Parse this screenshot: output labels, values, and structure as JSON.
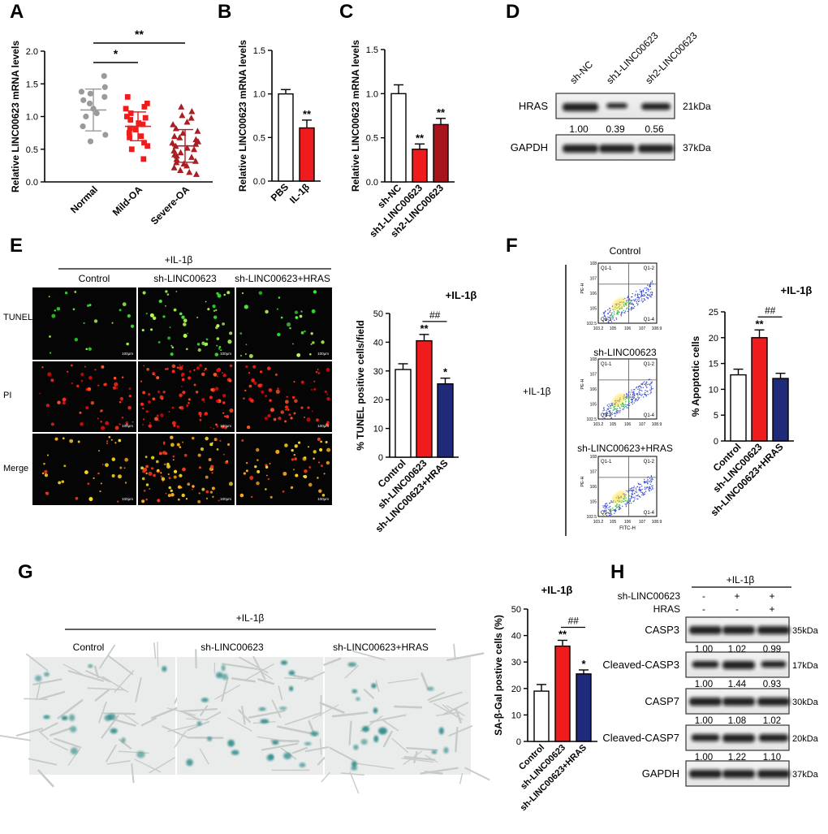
{
  "panels": {
    "A": {
      "label": "A"
    },
    "B": {
      "label": "B"
    },
    "C": {
      "label": "C"
    },
    "D": {
      "label": "D"
    },
    "E": {
      "label": "E"
    },
    "F": {
      "label": "F"
    },
    "G": {
      "label": "G"
    },
    "H": {
      "label": "H"
    }
  },
  "common": {
    "il1b": "+IL-1β"
  },
  "colors": {
    "white_bar": "#ffffff",
    "red": "#ee1c1c",
    "darkred": "#a8141c",
    "navy": "#1f2a7a",
    "grey": "#9a9a9a",
    "tri": "#a81e22"
  },
  "chart_data": [
    {
      "panel": "A",
      "type": "scatter",
      "ylabel": "Relative LINC00623 mRNA levels",
      "ylim": [
        0,
        2.0
      ],
      "yticks": [
        "0.0",
        "0.5",
        "1.0",
        "1.5",
        "2.0"
      ],
      "categories": [
        "Normal",
        "Mild-OA",
        "Severe-OA"
      ],
      "series": [
        {
          "values": [
            1.62,
            1.45,
            1.38,
            1.35,
            1.3,
            1.25,
            1.2,
            1.12,
            1.05,
            1.0,
            0.85,
            0.72,
            0.62
          ],
          "mean": 1.1,
          "sd": 0.32
        },
        {
          "values": [
            1.3,
            1.2,
            1.15,
            1.12,
            1.05,
            1.0,
            0.98,
            0.95,
            0.9,
            0.88,
            0.82,
            0.8,
            0.75,
            0.7,
            0.68,
            0.6,
            0.55,
            0.5,
            0.35
          ],
          "mean": 0.85,
          "sd": 0.22
        },
        {
          "values": [
            1.15,
            1.08,
            1.02,
            0.98,
            0.92,
            0.88,
            0.82,
            0.78,
            0.75,
            0.7,
            0.68,
            0.65,
            0.62,
            0.6,
            0.58,
            0.55,
            0.52,
            0.5,
            0.48,
            0.45,
            0.42,
            0.4,
            0.38,
            0.35,
            0.32,
            0.3,
            0.28,
            0.25,
            0.22,
            0.18,
            0.15,
            0.12
          ],
          "mean": 0.55,
          "sd": 0.25
        }
      ],
      "significance": [
        {
          "from": 0,
          "to": 1,
          "label": "*"
        },
        {
          "from": 0,
          "to": 2,
          "label": "**"
        }
      ]
    },
    {
      "panel": "B",
      "type": "bar",
      "ylabel": "Relative LINC00623 mRNA levels",
      "ylim": [
        0,
        1.5
      ],
      "yticks": [
        "0.0",
        "0.5",
        "1.0",
        "1.5"
      ],
      "categories": [
        "PBS",
        "IL-1β"
      ],
      "values": [
        1.0,
        0.61
      ],
      "errors": [
        0.05,
        0.09
      ],
      "bar_colors": [
        "white",
        "red"
      ],
      "stars": [
        "",
        "**"
      ]
    },
    {
      "panel": "C",
      "type": "bar",
      "ylabel": "Relative LINC00623 mRNA levels",
      "ylim": [
        0,
        1.5
      ],
      "yticks": [
        "0.0",
        "0.5",
        "1.0",
        "1.5"
      ],
      "categories": [
        "sh-NC",
        "sh1-LINC00623",
        "sh2-LINC00623"
      ],
      "values": [
        1.0,
        0.37,
        0.65
      ],
      "errors": [
        0.1,
        0.06,
        0.07
      ],
      "bar_colors": [
        "white",
        "red",
        "darkred"
      ],
      "stars": [
        "",
        "**",
        "**"
      ]
    },
    {
      "panel": "E",
      "type": "bar",
      "ylabel": "% TUNEL positive cells/field",
      "title": "+IL-1β",
      "ylim": [
        0,
        50
      ],
      "yticks": [
        "0",
        "10",
        "20",
        "30",
        "40",
        "50"
      ],
      "categories": [
        "Control",
        "sh-LINC00623",
        "sh-LINC00623+HRAS"
      ],
      "values": [
        30.5,
        40.5,
        25.5
      ],
      "errors": [
        2.0,
        2.2,
        2.0
      ],
      "bar_colors": [
        "white",
        "red",
        "navy"
      ],
      "stars": [
        "",
        "**",
        "*"
      ],
      "hash": "##"
    },
    {
      "panel": "F",
      "type": "bar",
      "ylabel": "% Apoptotic cells",
      "title": "+IL-1β",
      "ylim": [
        0,
        25
      ],
      "yticks": [
        "0",
        "5",
        "10",
        "15",
        "20",
        "25"
      ],
      "categories": [
        "Control",
        "sh-LINC00623",
        "sh-LINC00623+HRAS"
      ],
      "values": [
        12.8,
        20.0,
        12.1
      ],
      "errors": [
        1.1,
        1.5,
        1.0
      ],
      "bar_colors": [
        "white",
        "red",
        "navy"
      ],
      "stars": [
        "",
        "**",
        ""
      ],
      "hash": "##"
    },
    {
      "panel": "G",
      "type": "bar",
      "ylabel": "SA-β-Gal postive cells (%)",
      "title": "+IL-1β",
      "ylim": [
        0,
        50
      ],
      "yticks": [
        "0",
        "10",
        "20",
        "30",
        "40",
        "50"
      ],
      "categories": [
        "Control",
        "sh-LINC00623",
        "sh-LINC00623+HRAS"
      ],
      "values": [
        19.0,
        36.0,
        25.5
      ],
      "errors": [
        2.5,
        2.2,
        1.5
      ],
      "bar_colors": [
        "white",
        "red",
        "navy"
      ],
      "stars": [
        "",
        "**",
        "*"
      ],
      "hash": "##"
    }
  ],
  "blot_D": {
    "lanes": [
      "sh-NC",
      "sh1-LINC00623",
      "sh2-LINC00623"
    ],
    "rows": [
      {
        "name": "HRAS",
        "kda": "21kDa",
        "quant": [
          "1.00",
          "0.39",
          "0.56"
        ],
        "intensity": [
          1.0,
          0.55,
          0.8
        ]
      },
      {
        "name": "GAPDH",
        "kda": "37kDa",
        "quant": [],
        "intensity": [
          1.0,
          1.0,
          1.0
        ]
      }
    ]
  },
  "images_E": {
    "header": "+IL-1β",
    "columns": [
      "Control",
      "sh-LINC00623",
      "sh-LINC00623+HRAS"
    ],
    "rows": [
      "TUNEL",
      "PI",
      "Merge"
    ],
    "scale": "100μm"
  },
  "flow_F": {
    "side_label": "+IL-1β",
    "plots": [
      {
        "title": "Control"
      },
      {
        "title": "sh-LINC00623"
      },
      {
        "title": "sh-LINC00623+HRAS"
      }
    ],
    "quadrants": [
      "Q1-1",
      "Q1-2",
      "Q1-3",
      "Q1-4"
    ],
    "y_axis": "PE-H",
    "x_axis": "FITC-H",
    "y_ticks": [
      "10^2.5",
      "10^5",
      "10^6",
      "10^7",
      "10^8"
    ],
    "x_ticks": [
      "10^3.2",
      "10^5",
      "10^6",
      "10^7",
      "10^8.9"
    ]
  },
  "images_G": {
    "header": "+IL-1β",
    "columns": [
      "Control",
      "sh-LINC00623",
      "sh-LINC00623+HRAS"
    ]
  },
  "blot_H": {
    "header": "+IL-1β",
    "conditions": [
      {
        "name": "sh-LINC00623",
        "marks": [
          "-",
          "+",
          "+"
        ]
      },
      {
        "name": "HRAS",
        "marks": [
          "-",
          "-",
          "+"
        ]
      }
    ],
    "rows": [
      {
        "name": "CASP3",
        "kda": "35kDa",
        "quant": [
          "1.00",
          "1.02",
          "0.99"
        ],
        "intensity": [
          1.0,
          1.0,
          1.0
        ]
      },
      {
        "name": "Cleaved-CASP3",
        "kda": "17kDa",
        "quant": [
          "1.00",
          "1.44",
          "0.93"
        ],
        "intensity": [
          0.8,
          1.0,
          0.75
        ]
      },
      {
        "name": "CASP7",
        "kda": "30kDa",
        "quant": [
          "1.00",
          "1.08",
          "1.02"
        ],
        "intensity": [
          1.0,
          1.0,
          1.0
        ]
      },
      {
        "name": "Cleaved-CASP7",
        "kda": "20kDa",
        "quant": [
          "1.00",
          "1.22",
          "1.10"
        ],
        "intensity": [
          0.85,
          1.0,
          0.9
        ]
      },
      {
        "name": "GAPDH",
        "kda": "37kDa",
        "quant": [],
        "intensity": [
          1.0,
          1.0,
          1.0
        ]
      }
    ]
  }
}
